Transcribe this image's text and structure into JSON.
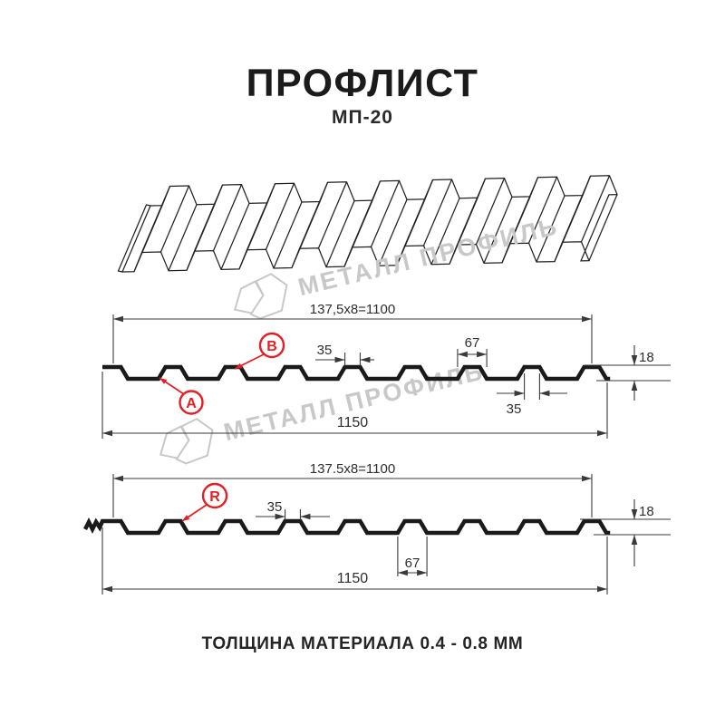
{
  "page": {
    "title": "ПРОФЛИСТ",
    "subtitle": "МП-20",
    "footer": "ТОЛЩИНА МАТЕРИАЛА 0.4 - 0.8 ММ",
    "watermark": {
      "brand_text": "МЕТАЛЛ ПРОФИЛЬ"
    },
    "colors": {
      "accent_red": "#e31e24",
      "profile_line": "#1a1a1a",
      "dim_line": "#3a3a3a",
      "watermark_gray": "#c8c8c8"
    }
  },
  "profile_top": {
    "coverage_width_label": "137,5x8=1100",
    "overall_width_label": "1150",
    "crest_top_width_label": "35",
    "rib_base_width_label": "67",
    "profile_height_label": "18",
    "crest_bottom_width_label": "35",
    "marker_a": "A",
    "marker_b": "B"
  },
  "profile_bottom": {
    "coverage_width_label": "137.5x8=1100",
    "overall_width_label": "1150",
    "crest_top_width_label": "35",
    "rib_base_width_label": "67",
    "profile_height_label": "18",
    "marker_r": "R"
  }
}
